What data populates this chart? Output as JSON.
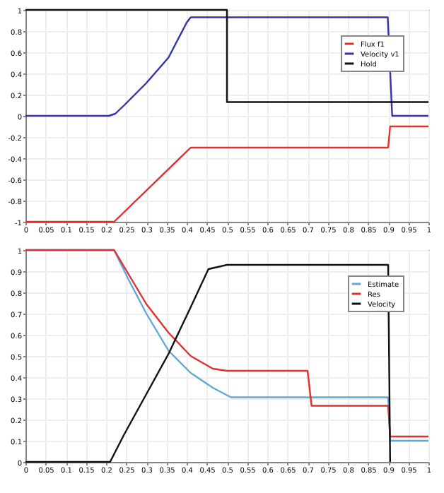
{
  "chart_data": [
    {
      "type": "line",
      "xlim": [
        0,
        1
      ],
      "ylim": [
        -1,
        1
      ],
      "xticks": [
        0,
        0.05,
        0.1,
        0.15,
        0.2,
        0.25,
        0.3,
        0.35,
        0.4,
        0.45,
        0.5,
        0.55,
        0.6,
        0.65,
        0.7,
        0.75,
        0.8,
        0.85,
        0.9,
        0.95,
        1
      ],
      "yticks": [
        -1,
        -0.8,
        -0.6,
        -0.4,
        -0.2,
        0,
        0.2,
        0.4,
        0.6,
        0.8,
        1
      ],
      "grid": true,
      "legend": "top right",
      "series": [
        {
          "name": "Flux f1",
          "color": "#e03030",
          "x": [
            0,
            0.22,
            0.41,
            0.9,
            0.905,
            1
          ],
          "values": [
            -1,
            -1,
            -0.3,
            -0.3,
            -0.1,
            -0.1
          ]
        },
        {
          "name": "Velocity v1",
          "color": "#3333aa",
          "x": [
            0,
            0.207,
            0.223,
            0.245,
            0.3,
            0.355,
            0.4,
            0.41,
            0.899,
            0.91,
            1
          ],
          "values": [
            0,
            0,
            0.02,
            0.1,
            0.31,
            0.55,
            0.88,
            0.93,
            0.93,
            0,
            0
          ]
        },
        {
          "name": "Hold",
          "color": "#111111",
          "x": [
            0,
            0.5,
            0.5,
            1
          ],
          "values": [
            1,
            1,
            0.13,
            0.13
          ]
        }
      ]
    },
    {
      "type": "line",
      "xlim": [
        0,
        1
      ],
      "ylim": [
        0,
        1
      ],
      "xticks": [
        0,
        0.05,
        0.1,
        0.15,
        0.2,
        0.25,
        0.3,
        0.35,
        0.4,
        0.45,
        0.5,
        0.55,
        0.6,
        0.65,
        0.7,
        0.75,
        0.8,
        0.85,
        0.9,
        0.95,
        1
      ],
      "yticks": [
        0,
        0.1,
        0.2,
        0.3,
        0.4,
        0.5,
        0.6,
        0.7,
        0.8,
        0.9,
        1
      ],
      "grid": true,
      "legend": "top right",
      "series": [
        {
          "name": "Estimate",
          "color": "#5fa8d8",
          "x": [
            0,
            0.22,
            0.256,
            0.3,
            0.355,
            0.41,
            0.465,
            0.51,
            0.9,
            0.905,
            1
          ],
          "values": [
            1,
            1,
            0.86,
            0.7,
            0.525,
            0.42,
            0.35,
            0.305,
            0.305,
            0.1,
            0.1
          ]
        },
        {
          "name": "Res",
          "color": "#e03030",
          "x": [
            0,
            0.22,
            0.3,
            0.355,
            0.41,
            0.465,
            0.5,
            0.7,
            0.71,
            0.9,
            0.905,
            1
          ],
          "values": [
            1,
            1,
            0.745,
            0.61,
            0.5,
            0.44,
            0.43,
            0.43,
            0.265,
            0.265,
            0.12,
            0.12
          ]
        },
        {
          "name": "Velocity",
          "color": "#111111",
          "x": [
            0,
            0.21,
            0.245,
            0.3,
            0.355,
            0.41,
            0.454,
            0.5,
            0.9,
            0.905
          ],
          "values": [
            0,
            0,
            0.13,
            0.32,
            0.51,
            0.73,
            0.91,
            0.93,
            0.93,
            0
          ]
        }
      ]
    }
  ]
}
